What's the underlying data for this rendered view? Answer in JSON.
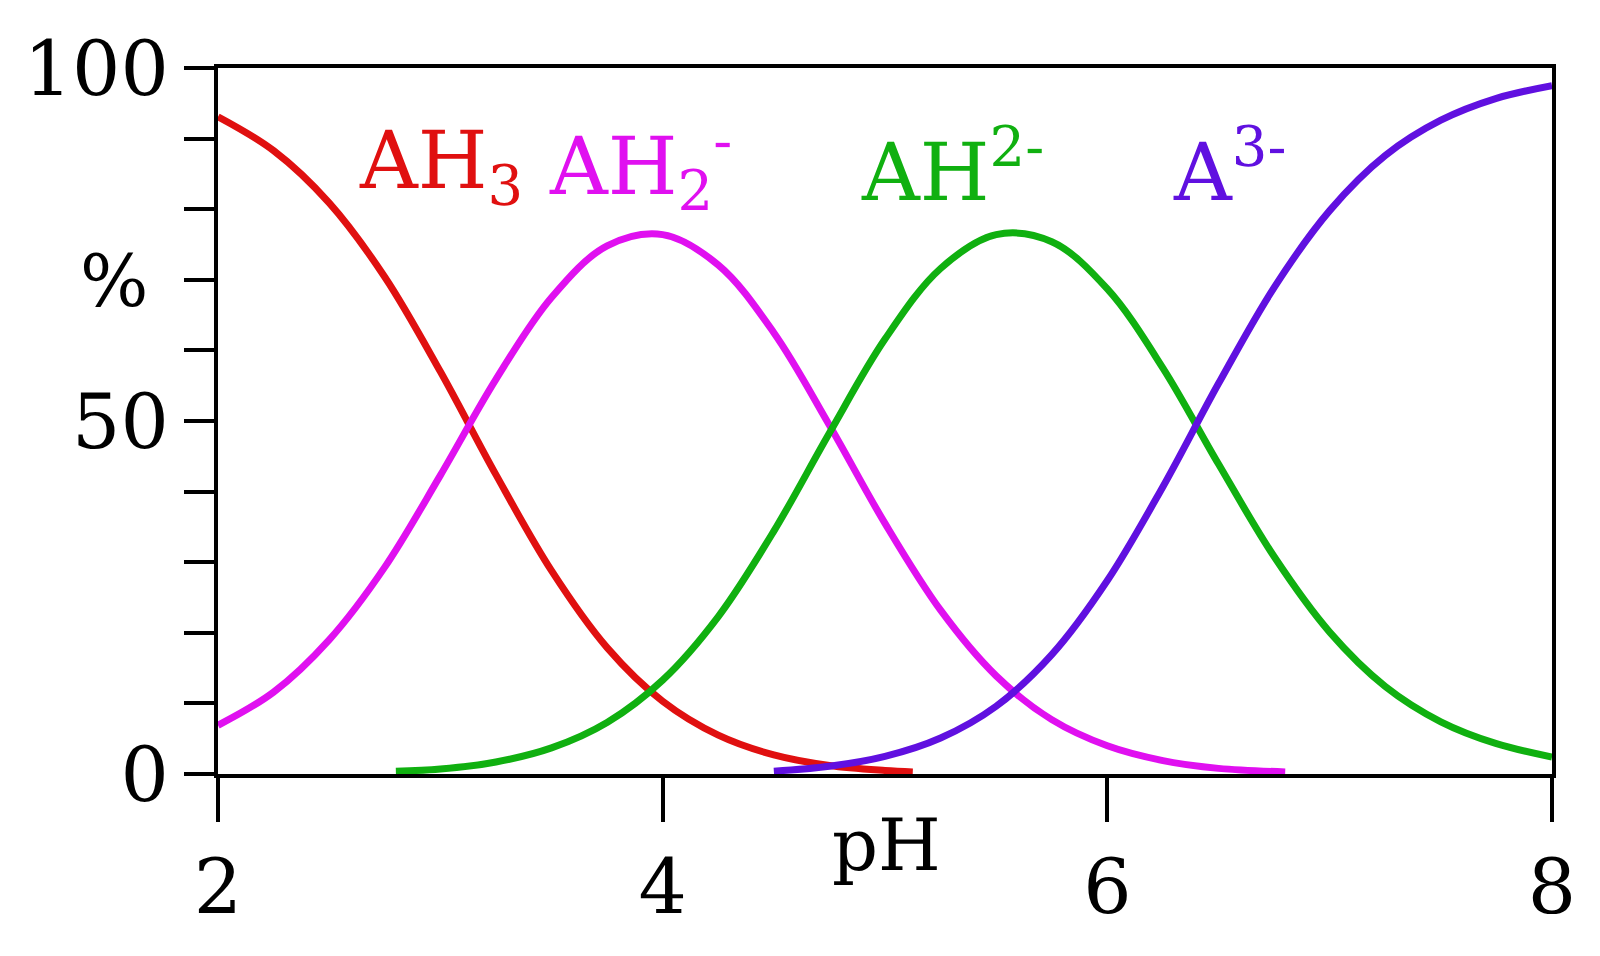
{
  "chart_data": {
    "type": "line",
    "xlabel": "pH",
    "ylabel": "%",
    "xlim": [
      2,
      8
    ],
    "xticks": [
      2,
      4,
      6,
      8
    ],
    "ylim": [
      0,
      100
    ],
    "yticks": [
      0,
      {
        "value": 10,
        "label": null
      },
      {
        "value": 20,
        "label": null
      },
      {
        "value": 30,
        "label": null
      },
      {
        "value": 40,
        "label": null
      },
      50,
      {
        "value": 60,
        "label": null
      },
      {
        "value": 70,
        "label": null
      },
      {
        "value": 80,
        "label": null
      },
      {
        "value": 90,
        "label": null
      },
      100
    ],
    "legend": false,
    "marker": "none",
    "line_style": "solid",
    "series": [
      {
        "name": "AH$_{3}$",
        "color": "#e01010",
        "x": [
          2.0,
          2.25,
          2.5,
          2.75,
          3.0,
          3.25,
          3.5,
          3.75,
          4.0,
          4.25,
          4.5,
          4.75,
          5.0,
          5.125
        ],
        "values": [
          93.1,
          88.3,
          80.9,
          70.4,
          57.0,
          42.4,
          28.8,
          17.9,
          10.3,
          5.5,
          2.7,
          1.2,
          0.5,
          0.3
        ]
      },
      {
        "name": "AH$_{2}$$^{-}$",
        "color": "#e010f0",
        "x": [
          2.0,
          2.25,
          2.5,
          2.75,
          3.0,
          3.25,
          3.5,
          3.75,
          4.0,
          4.25,
          4.5,
          4.75,
          5.0,
          5.25,
          5.5,
          5.75,
          6.0,
          6.25,
          6.5,
          6.8
        ],
        "values": [
          6.9,
          11.6,
          19.0,
          29.3,
          42.3,
          55.9,
          67.5,
          74.8,
          76.4,
          72.1,
          62.5,
          49.4,
          35.5,
          23.2,
          13.9,
          7.7,
          4.0,
          1.9,
          0.8,
          0.3
        ]
      },
      {
        "name": "AH$^{2-}$",
        "color": "#10b010",
        "x": [
          2.8,
          3.0,
          3.25,
          3.5,
          3.75,
          4.0,
          4.25,
          4.5,
          4.75,
          5.0,
          5.25,
          5.5,
          5.75,
          6.0,
          6.25,
          6.5,
          6.75,
          7.0,
          7.25,
          7.5,
          7.75,
          8.0
        ],
        "values": [
          0.4,
          0.7,
          1.7,
          3.7,
          7.3,
          13.3,
          22.3,
          34.4,
          48.3,
          61.6,
          71.6,
          76.4,
          75.4,
          68.7,
          57.5,
          43.9,
          30.8,
          20.1,
          12.4,
          7.4,
          4.3,
          2.4
        ]
      },
      {
        "name": "A$^{3-}$",
        "color": "#6010e0",
        "x": [
          4.5,
          4.75,
          5.0,
          5.25,
          5.5,
          5.75,
          6.0,
          6.25,
          6.5,
          6.75,
          7.0,
          7.25,
          7.5,
          7.75,
          8.0
        ],
        "values": [
          0.4,
          1.1,
          2.5,
          5.1,
          9.6,
          16.9,
          27.4,
          40.7,
          55.3,
          68.9,
          79.8,
          87.6,
          92.6,
          95.7,
          97.5
        ]
      }
    ]
  }
}
